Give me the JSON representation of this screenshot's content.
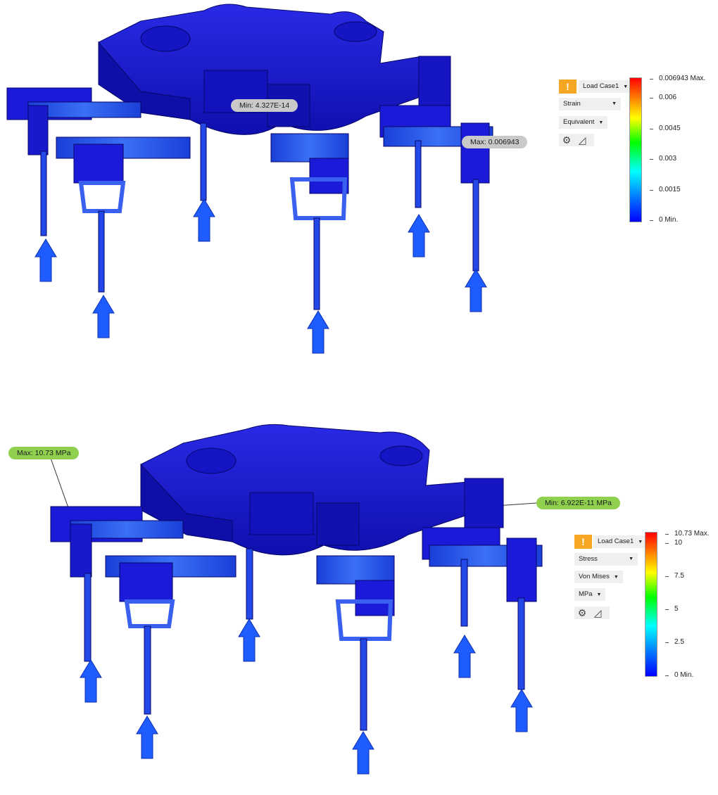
{
  "top": {
    "probe_min": "Min: 4.327E-14",
    "probe_max": "Max: 0.006943",
    "panel": {
      "warning_glyph": "!",
      "load_case": "Load Case1",
      "result_type": "Strain",
      "component": "Equivalent",
      "settings_icon": "gear-icon",
      "measure_icon": "triangle-ruler-icon"
    },
    "legend": {
      "ticks": [
        "0.006943 Max.",
        "0.006",
        "0.0045",
        "0.003",
        "0.0015",
        "0 Min."
      ]
    }
  },
  "bottom": {
    "probe_max": "Max: 10.73 MPa",
    "probe_min": "Min: 6.922E-11 MPa",
    "panel": {
      "warning_glyph": "!",
      "load_case": "Load Case1",
      "result_type": "Stress",
      "component": "Von Mises",
      "unit": "MPa",
      "settings_icon": "gear-icon",
      "measure_icon": "triangle-ruler-icon"
    },
    "legend": {
      "ticks": [
        "10.73 Max.",
        "10",
        "7.5",
        "5",
        "2.5",
        "0 Min."
      ]
    }
  },
  "colors": {
    "model_body": "#1a1ad8",
    "model_dark": "#0d0d9a",
    "model_light": "#3a50f0",
    "load_arrow": "#1e5cff",
    "warning": "#f5a623",
    "probe_grey": "#c9c9c9",
    "probe_green": "#8fd14f"
  }
}
